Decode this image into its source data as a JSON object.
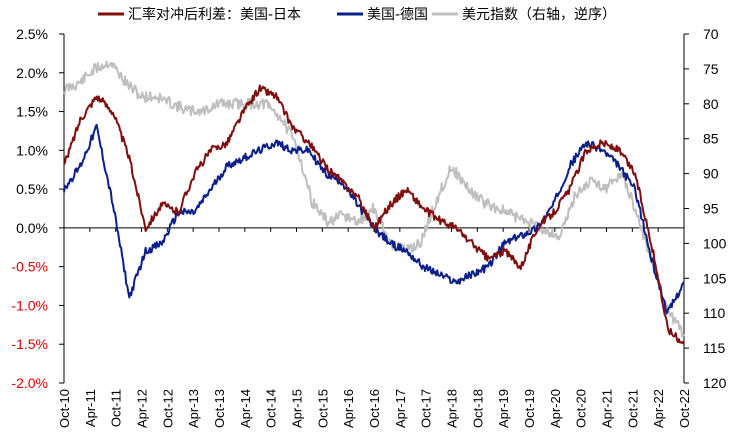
{
  "chart_data": {
    "type": "line",
    "legend": {
      "placement": "top",
      "entries": [
        {
          "label": "汇率对冲后利差：美国-日本",
          "color": "#7f0f0f"
        },
        {
          "label": "美国-德国",
          "color": "#0b1f8a"
        },
        {
          "label": "美元指数（右轴，逆序）",
          "color": "#bfbfbf"
        }
      ]
    },
    "y_left": {
      "ylim": [
        -2.0,
        2.5
      ],
      "ticks": [
        {
          "label": "2.5%",
          "value": 2.5,
          "color": "#000000"
        },
        {
          "label": "2.0%",
          "value": 2.0,
          "color": "#000000"
        },
        {
          "label": "1.5%",
          "value": 1.5,
          "color": "#000000"
        },
        {
          "label": "1.0%",
          "value": 1.0,
          "color": "#000000"
        },
        {
          "label": "0.5%",
          "value": 0.5,
          "color": "#000000"
        },
        {
          "label": "0.0%",
          "value": 0.0,
          "color": "#000000"
        },
        {
          "label": "-0.5%",
          "value": -0.5,
          "color": "#e00000"
        },
        {
          "label": "-1.0%",
          "value": -1.0,
          "color": "#e00000"
        },
        {
          "label": "-1.5%",
          "value": -1.5,
          "color": "#e00000"
        },
        {
          "label": "-2.0%",
          "value": -2.0,
          "color": "#e00000"
        }
      ]
    },
    "y_right": {
      "ylim": [
        70,
        120
      ],
      "inverted": true,
      "ticks": [
        {
          "label": "70",
          "value": 70
        },
        {
          "label": "75",
          "value": 75
        },
        {
          "label": "80",
          "value": 80
        },
        {
          "label": "85",
          "value": 85
        },
        {
          "label": "90",
          "value": 90
        },
        {
          "label": "95",
          "value": 95
        },
        {
          "label": "100",
          "value": 100
        },
        {
          "label": "105",
          "value": 105
        },
        {
          "label": "110",
          "value": 110
        },
        {
          "label": "115",
          "value": 115
        },
        {
          "label": "120",
          "value": 120
        }
      ]
    },
    "x": {
      "ticks": [
        "Oct-10",
        "Apr-11",
        "Oct-11",
        "Apr-12",
        "Oct-12",
        "Apr-13",
        "Oct-13",
        "Apr-14",
        "Oct-14",
        "Apr-15",
        "Oct-15",
        "Apr-16",
        "Oct-16",
        "Apr-17",
        "Oct-17",
        "Apr-18",
        "Oct-18",
        "Apr-19",
        "Oct-19",
        "Apr-20",
        "Oct-20",
        "Apr-21",
        "Oct-21",
        "Apr-22",
        "Oct-22"
      ]
    },
    "series": [
      {
        "name": "汇率对冲后利差：美国-日本",
        "axis": "left",
        "color": "#7f0f0f",
        "points": [
          [
            0,
            0.8
          ],
          [
            1,
            1.4
          ],
          [
            2,
            1.7
          ],
          [
            3,
            1.5
          ],
          [
            4,
            0.9
          ],
          [
            5,
            0.0
          ],
          [
            6,
            0.3
          ],
          [
            7,
            0.2
          ],
          [
            8,
            0.7
          ],
          [
            9,
            1.0
          ],
          [
            10,
            1.1
          ],
          [
            11,
            1.5
          ],
          [
            12,
            1.8
          ],
          [
            13,
            1.7
          ],
          [
            14,
            1.3
          ],
          [
            15,
            1.1
          ],
          [
            16,
            0.8
          ],
          [
            17,
            0.6
          ],
          [
            18,
            0.4
          ],
          [
            19,
            0.0
          ],
          [
            20,
            0.3
          ],
          [
            21,
            0.5
          ],
          [
            22,
            0.25
          ],
          [
            23,
            0.1
          ],
          [
            24,
            0.0
          ],
          [
            25,
            -0.2
          ],
          [
            26,
            -0.4
          ],
          [
            27,
            -0.3
          ],
          [
            28,
            -0.5
          ],
          [
            29,
            0.0
          ],
          [
            30,
            0.2
          ],
          [
            31,
            0.5
          ],
          [
            32,
            1.0
          ],
          [
            33,
            1.1
          ],
          [
            34,
            1.0
          ],
          [
            35,
            0.7
          ],
          [
            36,
            -0.2
          ],
          [
            37,
            -1.3
          ],
          [
            38,
            -1.5
          ]
        ]
      },
      {
        "name": "美国-德国",
        "axis": "left",
        "color": "#0b1f8a",
        "points": [
          [
            0,
            0.5
          ],
          [
            1,
            0.8
          ],
          [
            2,
            1.3
          ],
          [
            3,
            0.3
          ],
          [
            4,
            -0.9
          ],
          [
            5,
            -0.3
          ],
          [
            6,
            -0.2
          ],
          [
            7,
            0.2
          ],
          [
            8,
            0.2
          ],
          [
            9,
            0.5
          ],
          [
            10,
            0.8
          ],
          [
            11,
            0.9
          ],
          [
            12,
            1.0
          ],
          [
            13,
            1.1
          ],
          [
            14,
            1.0
          ],
          [
            15,
            1.0
          ],
          [
            16,
            0.7
          ],
          [
            17,
            0.6
          ],
          [
            18,
            0.3
          ],
          [
            19,
            0.0
          ],
          [
            20,
            -0.2
          ],
          [
            21,
            -0.3
          ],
          [
            22,
            -0.5
          ],
          [
            23,
            -0.6
          ],
          [
            24,
            -0.7
          ],
          [
            25,
            -0.6
          ],
          [
            26,
            -0.5
          ],
          [
            27,
            -0.2
          ],
          [
            28,
            -0.1
          ],
          [
            29,
            0.0
          ],
          [
            30,
            0.3
          ],
          [
            31,
            0.8
          ],
          [
            32,
            1.1
          ],
          [
            33,
            1.0
          ],
          [
            34,
            0.8
          ],
          [
            35,
            0.5
          ],
          [
            36,
            -0.4
          ],
          [
            37,
            -1.1
          ],
          [
            38,
            -0.7
          ]
        ]
      },
      {
        "name": "美元指数（右轴，逆序）",
        "axis": "right",
        "color": "#bfbfbf",
        "points": [
          [
            0,
            78
          ],
          [
            1,
            77
          ],
          [
            2,
            75
          ],
          [
            3,
            74
          ],
          [
            4,
            77
          ],
          [
            5,
            79
          ],
          [
            6,
            79
          ],
          [
            7,
            80
          ],
          [
            8,
            81
          ],
          [
            9,
            81
          ],
          [
            10,
            80
          ],
          [
            11,
            80
          ],
          [
            12,
            80
          ],
          [
            13,
            80
          ],
          [
            14,
            82
          ],
          [
            15,
            86
          ],
          [
            16,
            94
          ],
          [
            17,
            97
          ],
          [
            18,
            96
          ],
          [
            19,
            97
          ],
          [
            20,
            95
          ],
          [
            21,
            100
          ],
          [
            22,
            101
          ],
          [
            23,
            100
          ],
          [
            24,
            94
          ],
          [
            25,
            89
          ],
          [
            26,
            92
          ],
          [
            27,
            94
          ],
          [
            28,
            95
          ],
          [
            29,
            96
          ],
          [
            30,
            97
          ],
          [
            31,
            98
          ],
          [
            32,
            99
          ],
          [
            33,
            93
          ],
          [
            34,
            91
          ],
          [
            35,
            92
          ],
          [
            36,
            90
          ],
          [
            37,
            96
          ],
          [
            38,
            103
          ],
          [
            39,
            110
          ],
          [
            40,
            113
          ]
        ]
      }
    ]
  }
}
